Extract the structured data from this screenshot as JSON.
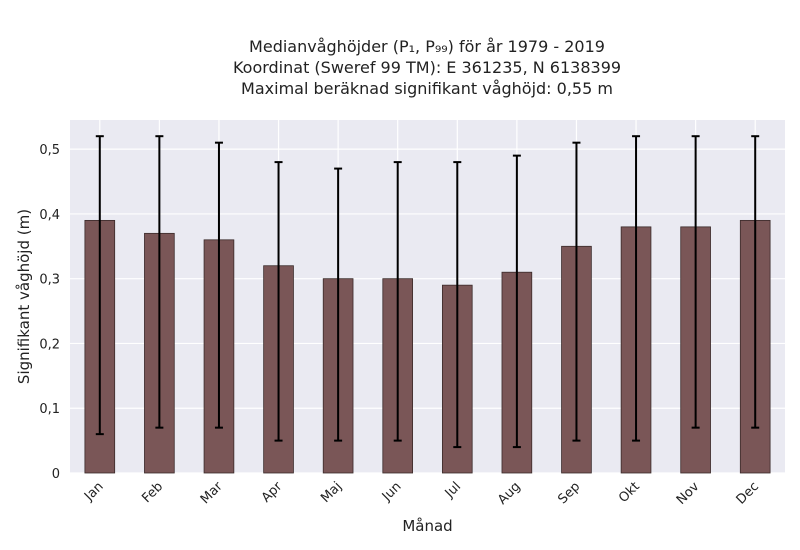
{
  "chart_data": {
    "type": "bar",
    "title_lines": [
      "Medianvåghöjder (P₁, P₉₉) för år 1979 - 2019",
      "Koordinat (Sweref 99 TM): E 361235, N 6138399",
      "Maximal beräknad signifikant våghöjd: 0,55 m"
    ],
    "xlabel": "Månad",
    "ylabel": "Signifikant våghöjd (m)",
    "categories": [
      "Jan",
      "Feb",
      "Mar",
      "Apr",
      "Maj",
      "Jun",
      "Jul",
      "Aug",
      "Sep",
      "Okt",
      "Nov",
      "Dec"
    ],
    "values": [
      0.39,
      0.37,
      0.36,
      0.32,
      0.3,
      0.3,
      0.29,
      0.31,
      0.35,
      0.38,
      0.38,
      0.39
    ],
    "err_low": [
      0.06,
      0.07,
      0.07,
      0.05,
      0.05,
      0.05,
      0.04,
      0.04,
      0.05,
      0.05,
      0.07,
      0.07
    ],
    "err_high": [
      0.52,
      0.52,
      0.51,
      0.48,
      0.47,
      0.48,
      0.48,
      0.49,
      0.51,
      0.52,
      0.52,
      0.52
    ],
    "yticks": [
      0,
      0.1,
      0.2,
      0.3,
      0.4,
      0.5
    ],
    "ytick_labels": [
      "0",
      "0,1",
      "0,2",
      "0,3",
      "0,4",
      "0,5"
    ],
    "ylim": [
      0,
      0.545
    ],
    "grid": true,
    "colors": {
      "bar": "#7a5657",
      "bar_edge": "#3a2a2a",
      "error_bar": "#000000",
      "plot_background": "#eaeaf2",
      "grid": "#ffffff"
    }
  }
}
